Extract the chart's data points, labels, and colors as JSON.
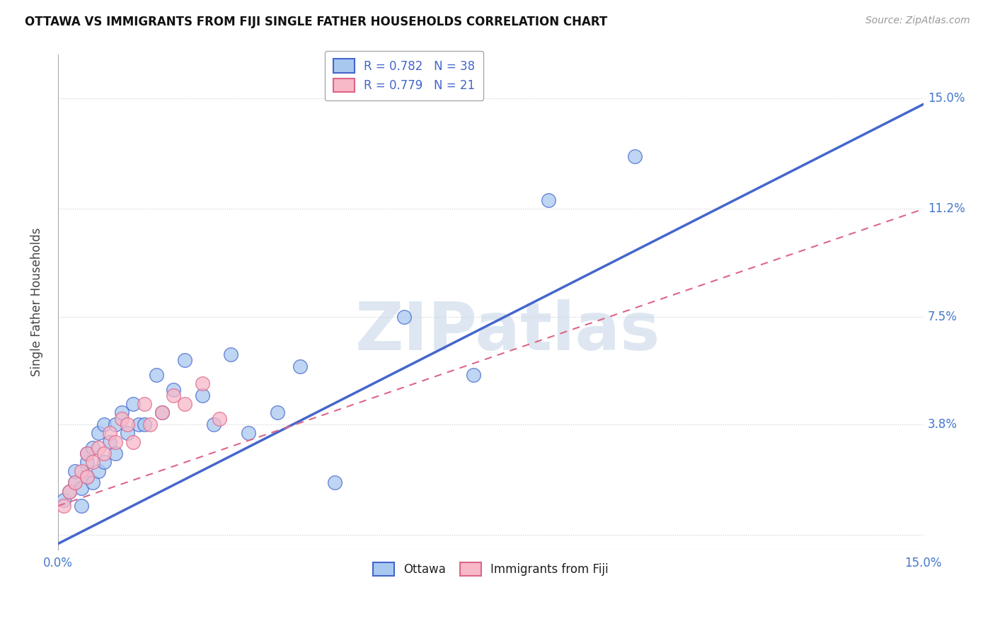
{
  "title": "OTTAWA VS IMMIGRANTS FROM FIJI SINGLE FATHER HOUSEHOLDS CORRELATION CHART",
  "source": "Source: ZipAtlas.com",
  "ylabel": "Single Father Households",
  "watermark_text": "ZIPatlas",
  "legend1_label": "R = 0.782   N = 38",
  "legend2_label": "R = 0.779   N = 21",
  "xlim": [
    0.0,
    0.15
  ],
  "ylim": [
    -0.005,
    0.165
  ],
  "yticks": [
    0.0,
    0.038,
    0.075,
    0.112,
    0.15
  ],
  "ytick_labels": [
    "",
    "3.8%",
    "7.5%",
    "11.2%",
    "15.0%"
  ],
  "xticks": [
    0.0,
    0.025,
    0.05,
    0.075,
    0.1,
    0.125,
    0.15
  ],
  "xtick_labels": [
    "0.0%",
    "",
    "",
    "",
    "",
    "",
    "15.0%"
  ],
  "blue_fill": "#a8c8f0",
  "pink_fill": "#f8b8c8",
  "line_blue": "#4466cc",
  "line_pink": "#dd6688",
  "tick_color": "#4477cc",
  "axis_color": "#444444",
  "grid_color": "#cccccc",
  "blue_line_x0": 0.0,
  "blue_line_y0": -0.003,
  "blue_line_x1": 0.15,
  "blue_line_y1": 0.148,
  "pink_line_x0": 0.0,
  "pink_line_y0": 0.01,
  "pink_line_x1": 0.15,
  "pink_line_y1": 0.112,
  "ottawa_x": [
    0.001,
    0.002,
    0.003,
    0.003,
    0.004,
    0.004,
    0.005,
    0.005,
    0.005,
    0.006,
    0.006,
    0.007,
    0.007,
    0.008,
    0.008,
    0.009,
    0.01,
    0.01,
    0.011,
    0.012,
    0.013,
    0.014,
    0.015,
    0.017,
    0.018,
    0.02,
    0.022,
    0.025,
    0.027,
    0.03,
    0.033,
    0.038,
    0.042,
    0.048,
    0.06,
    0.072,
    0.085,
    0.1
  ],
  "ottawa_y": [
    0.012,
    0.015,
    0.018,
    0.022,
    0.01,
    0.016,
    0.02,
    0.025,
    0.028,
    0.018,
    0.03,
    0.022,
    0.035,
    0.025,
    0.038,
    0.032,
    0.028,
    0.038,
    0.042,
    0.035,
    0.045,
    0.038,
    0.038,
    0.055,
    0.042,
    0.05,
    0.06,
    0.048,
    0.038,
    0.062,
    0.035,
    0.042,
    0.058,
    0.018,
    0.075,
    0.055,
    0.115,
    0.13
  ],
  "fiji_x": [
    0.001,
    0.002,
    0.003,
    0.004,
    0.005,
    0.005,
    0.006,
    0.007,
    0.008,
    0.009,
    0.01,
    0.011,
    0.012,
    0.013,
    0.015,
    0.016,
    0.018,
    0.02,
    0.022,
    0.025,
    0.028
  ],
  "fiji_y": [
    0.01,
    0.015,
    0.018,
    0.022,
    0.02,
    0.028,
    0.025,
    0.03,
    0.028,
    0.035,
    0.032,
    0.04,
    0.038,
    0.032,
    0.045,
    0.038,
    0.042,
    0.048,
    0.045,
    0.052,
    0.04
  ]
}
